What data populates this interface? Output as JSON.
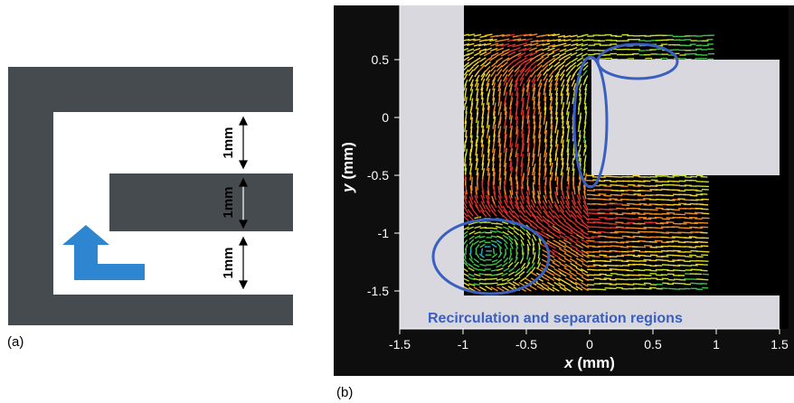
{
  "panels": {
    "a": {
      "label": "(a)",
      "dimensions": [
        "1mm",
        "1mm",
        "1mm"
      ],
      "colors": {
        "wall": "#454b4e",
        "channel": "#ffffff",
        "arrow": "#2e86d0"
      },
      "icon": "flow-direction-arrow"
    },
    "b": {
      "label": "(b)",
      "x_axis": {
        "title_var": "x",
        "title_unit": "(mm)",
        "ticks": [
          "-1.5",
          "-1",
          "-0.5",
          "0",
          "0.5",
          "1",
          "1.5"
        ]
      },
      "y_axis": {
        "title_var": "y",
        "title_unit": "(mm)",
        "ticks": [
          "0.5",
          "0",
          "-0.5",
          "-1",
          "-1.5"
        ]
      },
      "annotation": "Recirculation and separation regions",
      "colors": {
        "background": "#0e0e0e",
        "walls": "#d8d8de",
        "ellipses": "#3a5fc0",
        "vectors": [
          "#1fb3c9",
          "#3fc34a",
          "#c8e02a",
          "#f2d22b",
          "#ef8a24",
          "#d9302a"
        ]
      }
    }
  },
  "chart_data": {
    "type": "other",
    "xlim": [
      -1.5,
      1.5
    ],
    "ylim": [
      -1.8,
      0.85
    ],
    "xticks": [
      -1.5,
      -1,
      -0.5,
      0,
      0.5,
      1,
      1.5
    ],
    "yticks": [
      0.5,
      0,
      -0.5,
      -1,
      -1.5
    ],
    "walls": [
      {
        "x": [
          -1.5,
          -1.0
        ],
        "y": [
          -1.8,
          0.85
        ]
      },
      {
        "x": [
          0.0,
          1.5
        ],
        "y": [
          -0.5,
          0.5
        ]
      },
      {
        "x": [
          -1.0,
          1.5
        ],
        "y": [
          -1.8,
          -1.5
        ]
      }
    ],
    "ellipses": [
      {
        "cx": -0.8,
        "cy": -1.16,
        "rx": 0.45,
        "ry": 0.3
      },
      {
        "cx": 0.0,
        "cy": -0.04,
        "rx": 0.12,
        "ry": 0.53
      },
      {
        "cx": 0.37,
        "cy": 0.49,
        "rx": 0.33,
        "ry": 0.13
      }
    ]
  }
}
